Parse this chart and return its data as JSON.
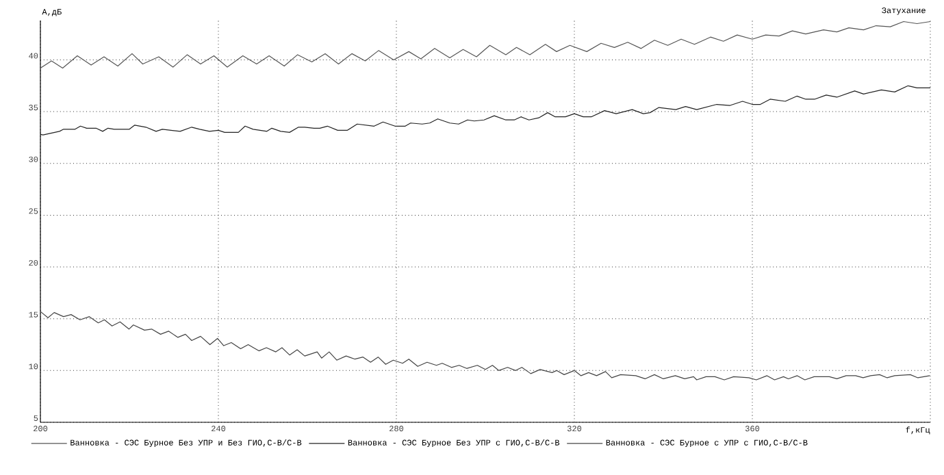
{
  "chart_data": {
    "type": "line",
    "title": "Затухание",
    "xlabel": "f,кГц",
    "ylabel": "А,дБ",
    "xlim": [
      200,
      400
    ],
    "ylim": [
      5,
      43.8
    ],
    "xticks": [
      200,
      240,
      280,
      320,
      360,
      {
        "value": 400,
        "label": null
      }
    ],
    "yticks": [
      5,
      10,
      15,
      20,
      25,
      30,
      35,
      40
    ],
    "grid": true,
    "legend": "bottom",
    "series": [
      {
        "name": "Ванновка - СЭС Бурное Без УПР и Без ГИО,С-В/С-В",
        "color": "#555555",
        "x": [
          200,
          202.5,
          205,
          208.3,
          211.4,
          214.3,
          217.4,
          220.6,
          223,
          226.6,
          229.8,
          233,
          236,
          239,
          242,
          245.5,
          248.6,
          251.4,
          254.8,
          257.8,
          261,
          264,
          267,
          270,
          273,
          276,
          279.4,
          282.8,
          285.5,
          288.6,
          292,
          295,
          298,
          301,
          304.6,
          307,
          310,
          313.5,
          316,
          319,
          322.8,
          326,
          329,
          332,
          335,
          338,
          341,
          344,
          347,
          350.6,
          353.5,
          356.6,
          360,
          363,
          366,
          369,
          372,
          376,
          379,
          381.7,
          385,
          387.8,
          391,
          394,
          397,
          400
        ],
        "values": [
          39.2,
          39.9,
          39.2,
          40.4,
          39.5,
          40.3,
          39.4,
          40.6,
          39.6,
          40.3,
          39.3,
          40.5,
          39.6,
          40.4,
          39.3,
          40.4,
          39.6,
          40.4,
          39.4,
          40.5,
          39.8,
          40.6,
          39.6,
          40.6,
          39.9,
          40.9,
          40.0,
          40.8,
          40.1,
          41.1,
          40.2,
          41.0,
          40.3,
          41.4,
          40.5,
          41.2,
          40.5,
          41.5,
          40.8,
          41.4,
          40.8,
          41.6,
          41.2,
          41.7,
          41.1,
          41.9,
          41.4,
          42.0,
          41.5,
          42.2,
          41.8,
          42.4,
          42.0,
          42.4,
          42.3,
          42.8,
          42.5,
          42.9,
          42.7,
          43.1,
          42.9,
          43.3,
          43.2,
          43.7,
          43.5,
          43.7
        ]
      },
      {
        "name": "Ванновка - СЭС Бурное Без УПР с ГИО,С-В/С-В",
        "color": "#222222",
        "x": [
          200,
          200.6,
          204.3,
          205.2,
          207.8,
          209,
          210.4,
          212.5,
          214,
          215.2,
          216.6,
          218.6,
          220,
          221.2,
          223.7,
          226,
          227.4,
          231.4,
          234,
          235.8,
          238,
          240,
          241.4,
          244.5,
          246,
          247.8,
          250.9,
          252,
          254,
          256,
          258,
          259.4,
          261.5,
          262.8,
          264.5,
          266.8,
          269,
          271.2,
          275,
          277,
          279.7,
          282,
          283.2,
          285.8,
          287.5,
          289.3,
          292,
          294,
          296,
          297.5,
          299.7,
          302,
          304.6,
          306.5,
          308,
          309.8,
          312,
          314,
          315.7,
          318,
          320,
          322,
          323.8,
          326.8,
          329.4,
          333,
          335.5,
          337,
          339,
          342.8,
          345,
          347.5,
          352,
          355,
          357.8,
          360,
          361.8,
          364,
          367.4,
          370,
          372,
          374,
          376.6,
          379,
          383,
          385,
          389,
          392,
          395,
          397,
          400
        ],
        "values": [
          32.8,
          32.75,
          33.1,
          33.3,
          33.3,
          33.6,
          33.4,
          33.4,
          33.1,
          33.4,
          33.3,
          33.3,
          33.3,
          33.7,
          33.5,
          33.1,
          33.3,
          33.1,
          33.5,
          33.3,
          33.1,
          33.2,
          33.0,
          33.0,
          33.6,
          33.3,
          33.1,
          33.4,
          33.1,
          33.0,
          33.5,
          33.5,
          33.4,
          33.4,
          33.6,
          33.2,
          33.2,
          33.8,
          33.6,
          34.0,
          33.6,
          33.6,
          33.9,
          33.8,
          33.9,
          34.3,
          33.9,
          33.8,
          34.2,
          34.1,
          34.2,
          34.6,
          34.2,
          34.2,
          34.5,
          34.2,
          34.4,
          34.9,
          34.5,
          34.5,
          34.8,
          34.5,
          34.5,
          35.1,
          34.8,
          35.2,
          34.8,
          34.9,
          35.4,
          35.2,
          35.5,
          35.2,
          35.7,
          35.6,
          36.0,
          35.7,
          35.7,
          36.2,
          36.0,
          36.5,
          36.2,
          36.2,
          36.6,
          36.4,
          37.0,
          36.7,
          37.1,
          36.9,
          37.5,
          37.3,
          37.3
        ]
      },
      {
        "name": "Ванновка - СЭС Бурное с УПР с ГИО,С-В/С-В",
        "color": "#444444",
        "x": [
          200,
          201.7,
          203.1,
          205.2,
          206.9,
          208.9,
          211,
          213,
          214.4,
          216.1,
          217.9,
          219.9,
          220.9,
          223.4,
          225,
          227,
          228.8,
          230.9,
          232.6,
          234,
          236,
          238.1,
          239.8,
          241.2,
          242.9,
          245,
          246.7,
          249.1,
          250.8,
          252.9,
          254.3,
          256,
          257.7,
          259.4,
          262.2,
          263.2,
          264.9,
          266.6,
          268.7,
          270.7,
          272.5,
          274.2,
          275.9,
          277.6,
          279.3,
          281.4,
          282.8,
          284.8,
          286.9,
          289,
          290.3,
          292.4,
          294.1,
          295.8,
          298.2,
          300,
          301.6,
          303,
          305,
          306.8,
          308.2,
          310.2,
          312.3,
          315,
          316,
          317.7,
          320,
          321.5,
          323.2,
          325,
          327,
          328.4,
          330.4,
          333.8,
          335.9,
          338,
          340,
          342.7,
          344.8,
          346.8,
          347.5,
          349.6,
          351.6,
          353.7,
          355.8,
          359.2,
          360.9,
          363.3,
          365,
          367,
          368.1,
          370.1,
          371.8,
          373.9,
          377.3,
          379,
          381.1,
          383.2,
          384.9,
          386.6,
          388.6,
          390.3,
          392,
          395.5,
          397.2,
          399.9
        ],
        "values": [
          15.7,
          15.1,
          15.6,
          15.2,
          15.4,
          14.9,
          15.2,
          14.6,
          14.9,
          14.3,
          14.7,
          14.0,
          14.4,
          13.9,
          14.0,
          13.5,
          13.8,
          13.2,
          13.5,
          12.9,
          13.3,
          12.5,
          13.1,
          12.4,
          12.7,
          12.1,
          12.5,
          11.9,
          12.2,
          11.8,
          12.2,
          11.5,
          12.0,
          11.4,
          11.8,
          11.2,
          11.8,
          11.0,
          11.4,
          11.1,
          11.3,
          10.8,
          11.3,
          10.6,
          11.0,
          10.7,
          11.1,
          10.4,
          10.8,
          10.5,
          10.7,
          10.3,
          10.5,
          10.2,
          10.5,
          10.1,
          10.5,
          10.0,
          10.3,
          10.0,
          10.3,
          9.7,
          10.1,
          9.8,
          10.0,
          9.6,
          10.0,
          9.5,
          9.8,
          9.5,
          9.9,
          9.3,
          9.6,
          9.5,
          9.2,
          9.6,
          9.2,
          9.5,
          9.2,
          9.4,
          9.1,
          9.4,
          9.4,
          9.1,
          9.4,
          9.3,
          9.1,
          9.5,
          9.1,
          9.4,
          9.2,
          9.5,
          9.1,
          9.4,
          9.4,
          9.2,
          9.5,
          9.5,
          9.3,
          9.5,
          9.6,
          9.3,
          9.5,
          9.6,
          9.3,
          9.5
        ]
      }
    ]
  }
}
